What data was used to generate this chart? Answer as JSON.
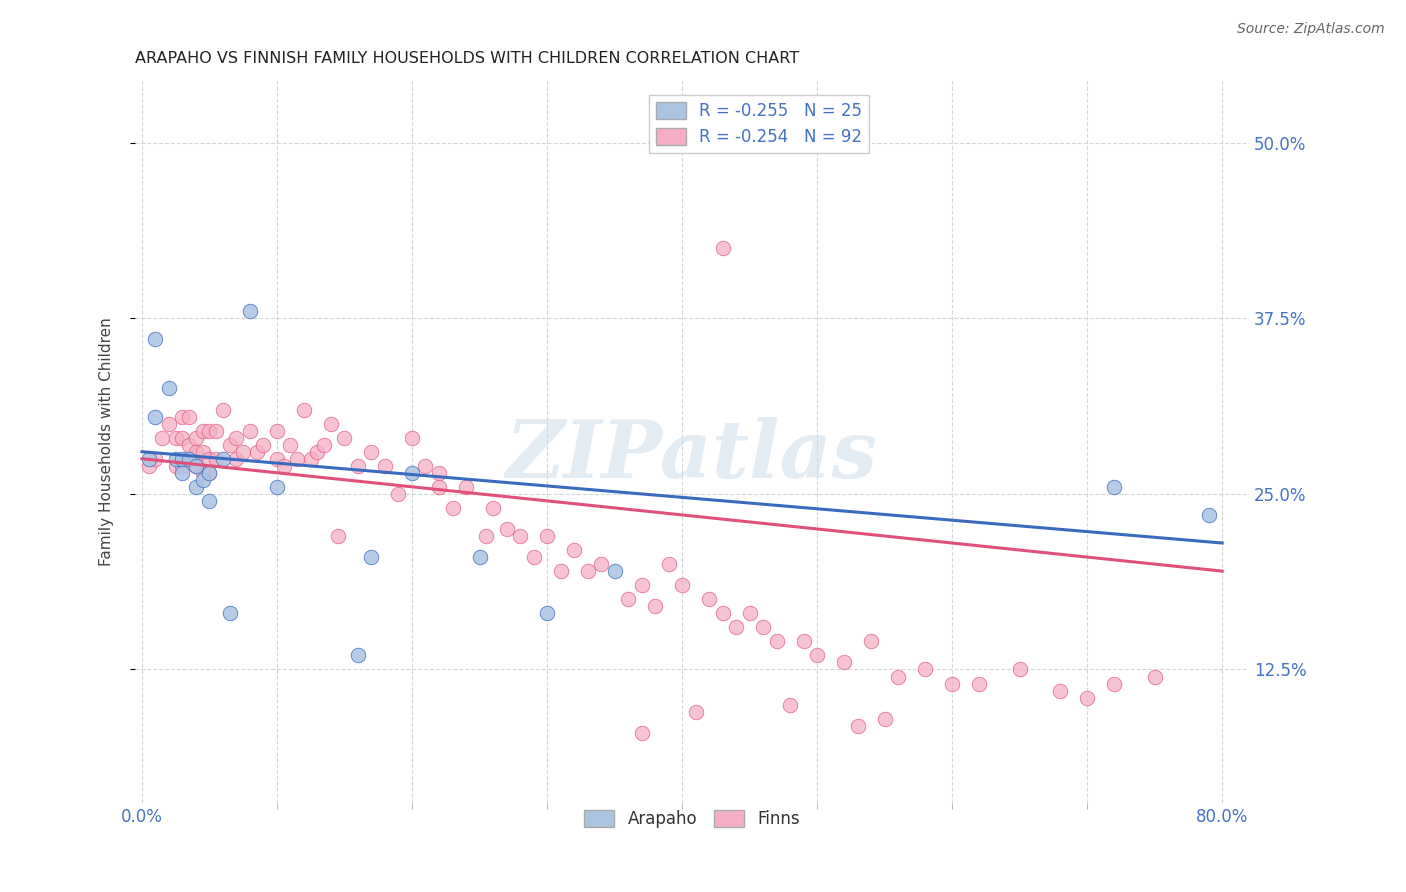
{
  "title": "ARAPAHO VS FINNISH FAMILY HOUSEHOLDS WITH CHILDREN CORRELATION CHART",
  "source": "Source: ZipAtlas.com",
  "ylabel": "Family Households with Children",
  "ytick_labels": [
    "12.5%",
    "25.0%",
    "37.5%",
    "50.0%"
  ],
  "ytick_values": [
    0.125,
    0.25,
    0.375,
    0.5
  ],
  "legend_arapaho": "R = -0.255   N = 25",
  "legend_finns": "R = -0.254   N = 92",
  "arapaho_color": "#aac4e2",
  "finns_color": "#f5afc5",
  "arapaho_line_color": "#3a6bbf",
  "finns_line_color": "#e0507a",
  "arapaho_scatter_x": [
    0.005,
    0.01,
    0.01,
    0.02,
    0.025,
    0.03,
    0.03,
    0.035,
    0.04,
    0.04,
    0.045,
    0.05,
    0.05,
    0.06,
    0.065,
    0.08,
    0.1,
    0.16,
    0.17,
    0.2,
    0.25,
    0.3,
    0.35,
    0.72,
    0.79
  ],
  "arapaho_scatter_y": [
    0.275,
    0.36,
    0.305,
    0.325,
    0.275,
    0.275,
    0.265,
    0.275,
    0.27,
    0.255,
    0.26,
    0.265,
    0.245,
    0.275,
    0.165,
    0.38,
    0.255,
    0.135,
    0.205,
    0.265,
    0.205,
    0.165,
    0.195,
    0.255,
    0.235
  ],
  "finns_scatter_x": [
    0.005,
    0.01,
    0.015,
    0.02,
    0.025,
    0.025,
    0.03,
    0.03,
    0.03,
    0.035,
    0.035,
    0.04,
    0.04,
    0.04,
    0.045,
    0.045,
    0.045,
    0.05,
    0.05,
    0.05,
    0.055,
    0.055,
    0.06,
    0.065,
    0.07,
    0.07,
    0.075,
    0.08,
    0.085,
    0.09,
    0.1,
    0.1,
    0.105,
    0.11,
    0.115,
    0.12,
    0.125,
    0.13,
    0.135,
    0.14,
    0.145,
    0.15,
    0.16,
    0.17,
    0.18,
    0.19,
    0.2,
    0.21,
    0.22,
    0.22,
    0.23,
    0.24,
    0.255,
    0.26,
    0.27,
    0.28,
    0.29,
    0.3,
    0.31,
    0.32,
    0.33,
    0.34,
    0.36,
    0.37,
    0.38,
    0.39,
    0.4,
    0.42,
    0.43,
    0.44,
    0.45,
    0.46,
    0.47,
    0.49,
    0.5,
    0.52,
    0.54,
    0.56,
    0.58,
    0.6,
    0.62,
    0.65,
    0.68,
    0.7,
    0.72,
    0.75,
    0.43,
    0.37,
    0.53,
    0.41,
    0.55,
    0.48
  ],
  "finns_scatter_y": [
    0.27,
    0.275,
    0.29,
    0.3,
    0.29,
    0.27,
    0.305,
    0.29,
    0.27,
    0.305,
    0.285,
    0.29,
    0.28,
    0.27,
    0.295,
    0.28,
    0.265,
    0.295,
    0.275,
    0.265,
    0.295,
    0.275,
    0.31,
    0.285,
    0.29,
    0.275,
    0.28,
    0.295,
    0.28,
    0.285,
    0.295,
    0.275,
    0.27,
    0.285,
    0.275,
    0.31,
    0.275,
    0.28,
    0.285,
    0.3,
    0.22,
    0.29,
    0.27,
    0.28,
    0.27,
    0.25,
    0.29,
    0.27,
    0.265,
    0.255,
    0.24,
    0.255,
    0.22,
    0.24,
    0.225,
    0.22,
    0.205,
    0.22,
    0.195,
    0.21,
    0.195,
    0.2,
    0.175,
    0.185,
    0.17,
    0.2,
    0.185,
    0.175,
    0.165,
    0.155,
    0.165,
    0.155,
    0.145,
    0.145,
    0.135,
    0.13,
    0.145,
    0.12,
    0.125,
    0.115,
    0.115,
    0.125,
    0.11,
    0.105,
    0.115,
    0.12,
    0.425,
    0.08,
    0.085,
    0.095,
    0.09,
    0.1
  ],
  "arapaho_trendline_x": [
    0.0,
    0.8
  ],
  "arapaho_trendline_y": [
    0.28,
    0.215
  ],
  "finns_trendline_x": [
    0.0,
    0.8
  ],
  "finns_trendline_y": [
    0.275,
    0.195
  ],
  "watermark": "ZIPatlas",
  "background_color": "#ffffff",
  "grid_color": "#cccccc",
  "xlim": [
    -0.005,
    0.82
  ],
  "ylim": [
    0.03,
    0.545
  ]
}
